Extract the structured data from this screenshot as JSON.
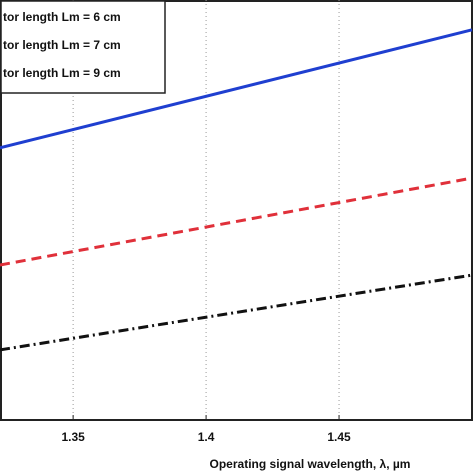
{
  "chart_data": {
    "type": "line",
    "xlabel": "Operating signal wavelength, λ, µm",
    "x": [
      1.3225,
      1.5
    ],
    "series": [
      {
        "name": "tor length Lm = 6 cm",
        "color": "#1f3fd0",
        "dash": "solid",
        "values": [
          64.8,
          92.9
        ]
      },
      {
        "name": "tor length Lm = 7 cm",
        "color": "#e0303a",
        "dash": "dashed",
        "values": [
          36.9,
          57.6
        ]
      },
      {
        "name": "tor length Lm = 9 cm",
        "color": "#111111",
        "dash": "dashdot",
        "values": [
          16.7,
          34.5
        ]
      }
    ],
    "xlim": [
      1.3225,
      1.5
    ],
    "ylim": [
      0,
      100
    ],
    "xticks": [
      1.35,
      1.4,
      1.45
    ],
    "grid": true,
    "legend": "upper left"
  }
}
